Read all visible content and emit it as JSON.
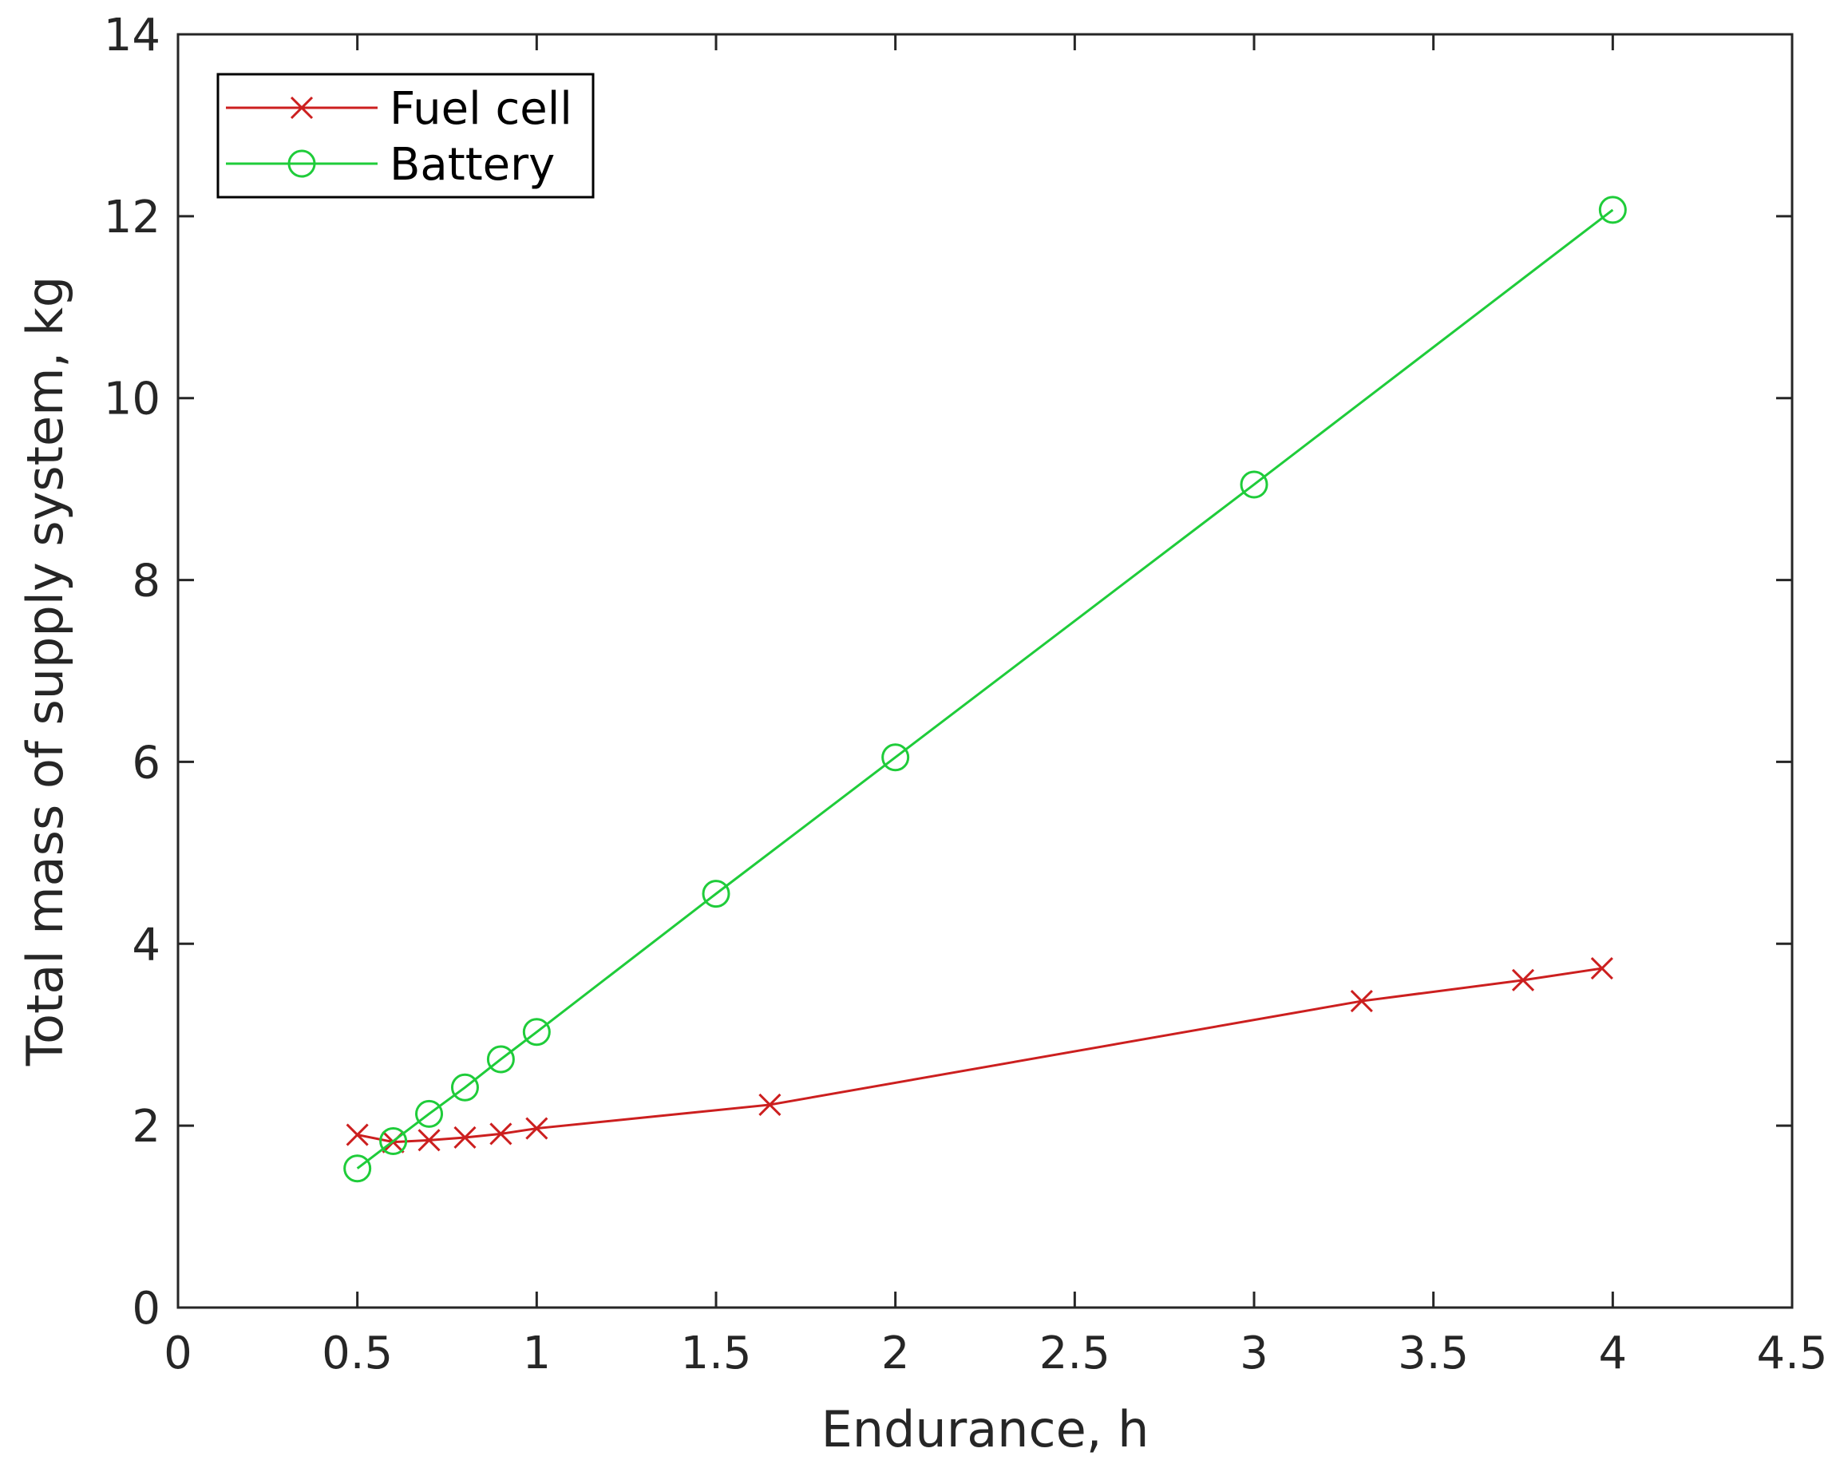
{
  "chart_data": {
    "type": "line",
    "title": "",
    "xlabel": "Endurance, h",
    "ylabel": "Total mass of supply system, kg",
    "xlim": [
      0,
      4.5
    ],
    "ylim": [
      0,
      14
    ],
    "xticks": [
      0,
      0.5,
      1,
      1.5,
      2,
      2.5,
      3,
      3.5,
      4,
      4.5
    ],
    "yticks": [
      0,
      2,
      4,
      6,
      8,
      10,
      12,
      14
    ],
    "xtick_labels": [
      "0",
      "0.5",
      "1",
      "1.5",
      "2",
      "2.5",
      "3",
      "3.5",
      "4",
      "4.5"
    ],
    "ytick_labels": [
      "0",
      "2",
      "4",
      "6",
      "8",
      "10",
      "12",
      "14"
    ],
    "grid": false,
    "legend_position": "top-left",
    "series": [
      {
        "name": "Fuel cell",
        "color": "#cc1f1f",
        "marker": "x",
        "x": [
          0.5,
          0.6,
          0.7,
          0.8,
          0.9,
          1.0,
          1.65,
          3.3,
          3.75,
          3.97
        ],
        "y": [
          1.9,
          1.82,
          1.84,
          1.87,
          1.91,
          1.97,
          2.23,
          3.37,
          3.6,
          3.73
        ]
      },
      {
        "name": "Battery",
        "color": "#1fcc3a",
        "marker": "o",
        "x": [
          0.5,
          0.6,
          0.7,
          0.8,
          0.9,
          1.0,
          1.5,
          2.0,
          3.0,
          4.0
        ],
        "y": [
          1.53,
          1.83,
          2.13,
          2.42,
          2.73,
          3.03,
          4.55,
          6.05,
          9.05,
          12.07
        ]
      }
    ]
  }
}
